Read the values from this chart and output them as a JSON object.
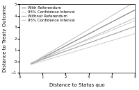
{
  "title": "",
  "xlabel": "Distance to Status quo",
  "ylabel": "Distance to Treaty Outcome",
  "xlim": [
    0,
    5
  ],
  "ylim": [
    -1,
    5
  ],
  "xticks": [
    0,
    1,
    2,
    3,
    4,
    5
  ],
  "yticks": [
    -1,
    0,
    1,
    2,
    3,
    4,
    5
  ],
  "x_start": 0.5,
  "x_end": 5.0,
  "with_ref": {
    "slope": 1.05,
    "intercept": -0.75,
    "color": "#888888",
    "lw": 0.9,
    "label": "With Referendum"
  },
  "with_ref_ci_upper": {
    "slope": 1.2,
    "intercept": -0.8,
    "color": "#bbbbbb",
    "lw": 0.7,
    "label": "95% Confidence Interval"
  },
  "with_ref_ci_lower": {
    "slope": 0.9,
    "intercept": -0.7,
    "color": "#bbbbbb",
    "lw": 0.7
  },
  "without_ref": {
    "slope": 0.72,
    "intercept": -0.55,
    "color": "#aaaaaa",
    "lw": 0.9,
    "label": "Without Referendum"
  },
  "without_ref_ci_upper": {
    "slope": 0.82,
    "intercept": -0.55,
    "color": "#cccccc",
    "lw": 0.7,
    "label": "95% Confidence Interval"
  },
  "without_ref_ci_lower": {
    "slope": 0.6,
    "intercept": -0.58,
    "color": "#cccccc",
    "lw": 0.7
  },
  "legend_fontsize": 4.0,
  "label_fontsize": 5.0,
  "tick_fontsize": 4.0,
  "background_color": "#ffffff"
}
